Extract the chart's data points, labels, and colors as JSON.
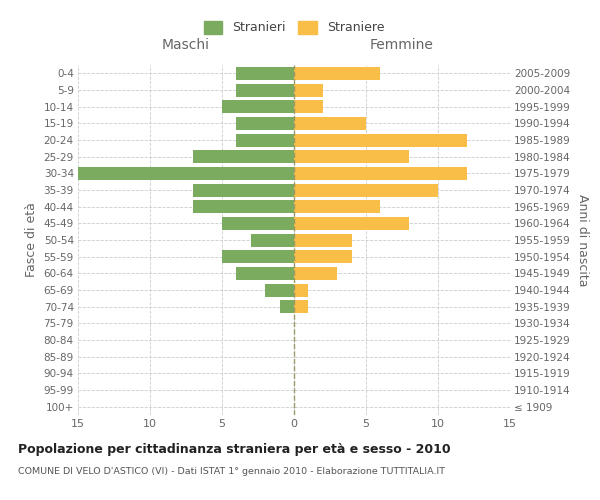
{
  "age_groups": [
    "100+",
    "95-99",
    "90-94",
    "85-89",
    "80-84",
    "75-79",
    "70-74",
    "65-69",
    "60-64",
    "55-59",
    "50-54",
    "45-49",
    "40-44",
    "35-39",
    "30-34",
    "25-29",
    "20-24",
    "15-19",
    "10-14",
    "5-9",
    "0-4"
  ],
  "birth_years": [
    "≤ 1909",
    "1910-1914",
    "1915-1919",
    "1920-1924",
    "1925-1929",
    "1930-1934",
    "1935-1939",
    "1940-1944",
    "1945-1949",
    "1950-1954",
    "1955-1959",
    "1960-1964",
    "1965-1969",
    "1970-1974",
    "1975-1979",
    "1980-1984",
    "1985-1989",
    "1990-1994",
    "1995-1999",
    "2000-2004",
    "2005-2009"
  ],
  "males": [
    0,
    0,
    0,
    0,
    0,
    0,
    1,
    2,
    4,
    5,
    3,
    5,
    7,
    7,
    15,
    7,
    4,
    4,
    5,
    4,
    4
  ],
  "females": [
    0,
    0,
    0,
    0,
    0,
    0,
    1,
    1,
    3,
    4,
    4,
    8,
    6,
    10,
    12,
    8,
    12,
    5,
    2,
    2,
    6
  ],
  "male_color": "#7aab5e",
  "female_color": "#f9be47",
  "title": "Popolazione per cittadinanza straniera per età e sesso - 2010",
  "subtitle1": "COMUNE DI VELO D'ASTICO (VI) - Dati ISTAT 1° gennaio 2010 - Elaborazione TUTTITALIA.IT",
  "xlabel_left": "Maschi",
  "xlabel_right": "Femmine",
  "ylabel_left": "Fasce di età",
  "ylabel_right": "Anni di nascita",
  "legend_males": "Stranieri",
  "legend_females": "Straniere",
  "xlim": 15,
  "background_color": "#ffffff",
  "grid_color": "#cccccc"
}
